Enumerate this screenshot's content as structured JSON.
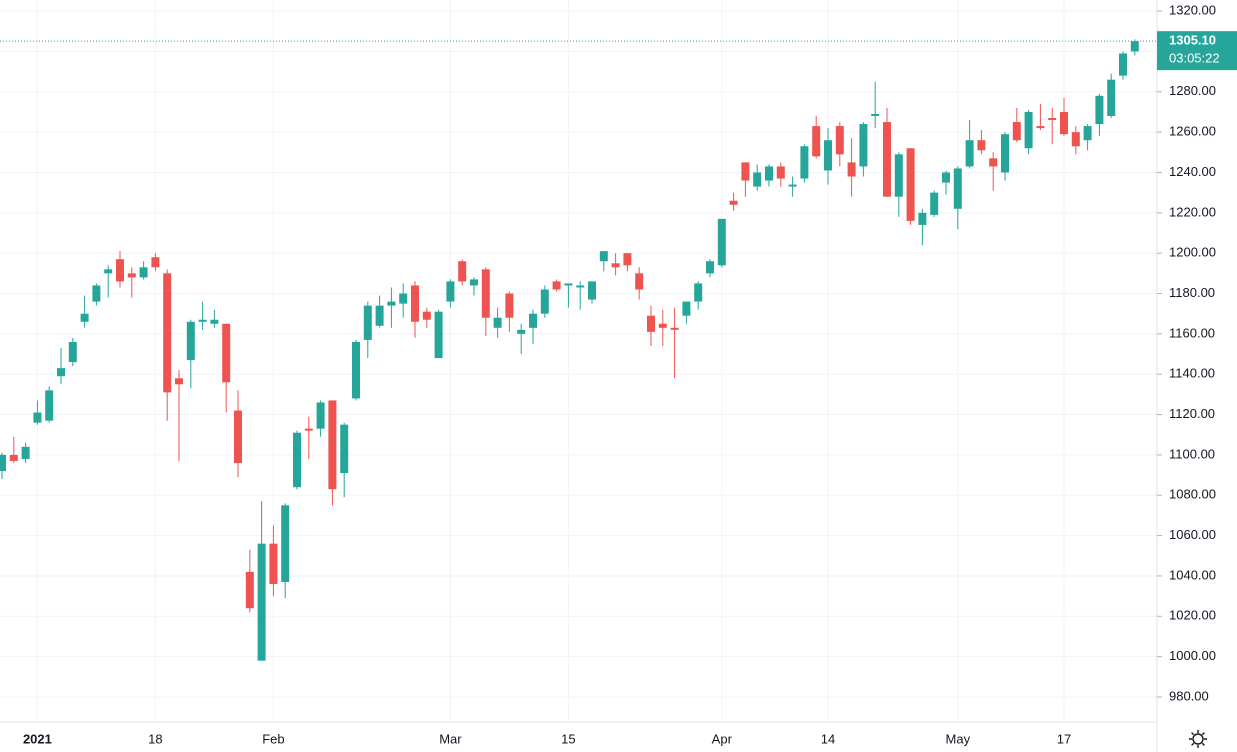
{
  "chart_data": {
    "type": "candlestick",
    "categories": [
      null,
      null,
      null,
      "2021",
      null,
      null,
      null,
      null,
      null,
      null,
      null,
      null,
      null,
      "18",
      null,
      null,
      null,
      null,
      null,
      null,
      null,
      null,
      null,
      "Feb",
      null,
      null,
      null,
      null,
      null,
      null,
      null,
      null,
      null,
      null,
      null,
      null,
      null,
      null,
      "Mar",
      null,
      null,
      null,
      null,
      null,
      null,
      null,
      null,
      null,
      "15",
      null,
      null,
      null,
      null,
      null,
      null,
      null,
      null,
      null,
      null,
      null,
      null,
      "Apr",
      null,
      null,
      null,
      null,
      null,
      null,
      null,
      null,
      "14",
      null,
      null,
      null,
      null,
      null,
      null,
      null,
      null,
      null,
      null,
      "May",
      null,
      null,
      null,
      null,
      null,
      null,
      null,
      null,
      "17",
      null,
      null,
      null,
      null,
      null,
      null
    ],
    "open": [
      1092,
      1100,
      1098,
      1116,
      1117,
      1139,
      1146,
      1166,
      1176,
      1190,
      1197,
      1190,
      1188,
      1198,
      1190,
      1138,
      1147,
      1166,
      1165,
      1165,
      1122,
      1042,
      998,
      1056,
      1037,
      1084,
      1113,
      1113,
      1127,
      1091,
      1128,
      1157,
      1164,
      1174,
      1175,
      1184,
      1171,
      1148,
      1176,
      1196,
      1184,
      1192,
      1163,
      1180,
      1160,
      1163,
      1170,
      1186,
      1184,
      1183,
      1177,
      1196,
      1195,
      1200,
      1190,
      1169,
      1165,
      1163,
      1169,
      1176,
      1190,
      1194,
      1226,
      1245,
      1233,
      1236,
      1243,
      1233,
      1237,
      1263,
      1241,
      1263,
      1245,
      1243,
      1268,
      1265,
      1228,
      1252,
      1214,
      1219,
      1235,
      1222,
      1243,
      1256,
      1247,
      1240,
      1265,
      1252,
      1263,
      1267,
      1270,
      1260,
      1256,
      1264,
      1268,
      1288,
      1300
    ],
    "high": [
      1101,
      1109,
      1106,
      1127,
      1134,
      1153,
      1158,
      1179,
      1185,
      1194,
      1201,
      1193,
      1196,
      1200,
      1192,
      1142,
      1167,
      1176,
      1172,
      1165,
      1132,
      1053,
      1077,
      1065,
      1076,
      1112,
      1119,
      1127,
      1127,
      1116,
      1157,
      1176,
      1179,
      1183,
      1185,
      1186,
      1173,
      1172,
      1187,
      1197,
      1188,
      1193,
      1173,
      1181,
      1165,
      1172,
      1184,
      1187,
      1185,
      1186,
      1186,
      1201,
      1200,
      1200,
      1193,
      1174,
      1172,
      1173,
      1176,
      1186,
      1197,
      1217,
      1230,
      1245,
      1244,
      1244,
      1245,
      1238,
      1254,
      1268,
      1262,
      1265,
      1257,
      1265,
      1285,
      1272,
      1250,
      1252,
      1222,
      1231,
      1241,
      1243,
      1266,
      1261,
      1250,
      1260,
      1272,
      1271,
      1274,
      1272,
      1277,
      1263,
      1264,
      1279,
      1289,
      1300,
      1306
    ],
    "low": [
      1088,
      1096,
      1096,
      1115,
      1116,
      1135,
      1144,
      1163,
      1174,
      1178,
      1183,
      1178,
      1187,
      1191,
      1117,
      1097,
      1133,
      1162,
      1163,
      1121,
      1089,
      1022,
      998,
      1030,
      1029,
      1083,
      1098,
      1109,
      1075,
      1079,
      1127,
      1148,
      1163,
      1163,
      1168,
      1158,
      1163,
      1148,
      1173,
      1184,
      1179,
      1159,
      1158,
      1161,
      1150,
      1155,
      1168,
      1181,
      1173,
      1172,
      1175,
      1191,
      1189,
      1191,
      1177,
      1154,
      1154,
      1138,
      1165,
      1172,
      1188,
      1193,
      1221,
      1228,
      1231,
      1233,
      1233,
      1228,
      1235,
      1247,
      1234,
      1243,
      1228,
      1238,
      1262,
      1228,
      1218,
      1214,
      1204,
      1218,
      1229,
      1212,
      1242,
      1249,
      1231,
      1236,
      1255,
      1249,
      1261,
      1254,
      1258,
      1249,
      1251,
      1258,
      1267,
      1286,
      1298
    ],
    "close": [
      1100,
      1097,
      1104,
      1121,
      1132,
      1143,
      1156,
      1170,
      1184,
      1192,
      1186,
      1188,
      1193,
      1193,
      1131,
      1135,
      1166,
      1167,
      1167,
      1136,
      1096,
      1024,
      1056,
      1036,
      1075,
      1111,
      1112,
      1126,
      1083,
      1115,
      1156,
      1174,
      1174,
      1176,
      1180,
      1166,
      1167,
      1171,
      1186,
      1186,
      1187,
      1168,
      1168,
      1168,
      1162,
      1170,
      1182,
      1182,
      1185,
      1184,
      1186,
      1201,
      1193,
      1194,
      1182,
      1161,
      1163,
      1162,
      1176,
      1185,
      1196,
      1217,
      1224,
      1236,
      1240,
      1243,
      1237,
      1234,
      1253,
      1248,
      1256,
      1249,
      1238,
      1264,
      1269,
      1228,
      1249,
      1216,
      1220,
      1230,
      1240,
      1242,
      1256,
      1251,
      1243,
      1259,
      1256,
      1270,
      1262,
      1266,
      1259,
      1253,
      1263,
      1278,
      1286,
      1299,
      1305.1
    ],
    "up_color": "#26a69a",
    "down_color": "#ef5350",
    "ylim": [
      967.6,
      1325.5
    ],
    "yticks": [
      {
        "value": 980,
        "label": "980.00"
      },
      {
        "value": 1000,
        "label": "1000.00"
      },
      {
        "value": 1020,
        "label": "1020.00"
      },
      {
        "value": 1040,
        "label": "1040.00"
      },
      {
        "value": 1060,
        "label": "1060.00"
      },
      {
        "value": 1080,
        "label": "1080.00"
      },
      {
        "value": 1100,
        "label": "1100.00"
      },
      {
        "value": 1120,
        "label": "1120.00"
      },
      {
        "value": 1140,
        "label": "1140.00"
      },
      {
        "value": 1160,
        "label": "1160.00"
      },
      {
        "value": 1180,
        "label": "1180.00"
      },
      {
        "value": 1200,
        "label": "1200.00"
      },
      {
        "value": 1220,
        "label": "1220.00"
      },
      {
        "value": 1240,
        "label": "1240.00"
      },
      {
        "value": 1260,
        "label": "1260.00"
      },
      {
        "value": 1280,
        "label": "1280.00"
      },
      {
        "value": 1300,
        "label": "1300.00"
      },
      {
        "value": 1320,
        "label": "1320.00"
      }
    ],
    "grid": true,
    "last_price": 1305.1,
    "last_price_label": "1305.10",
    "countdown": "03:05:22"
  }
}
